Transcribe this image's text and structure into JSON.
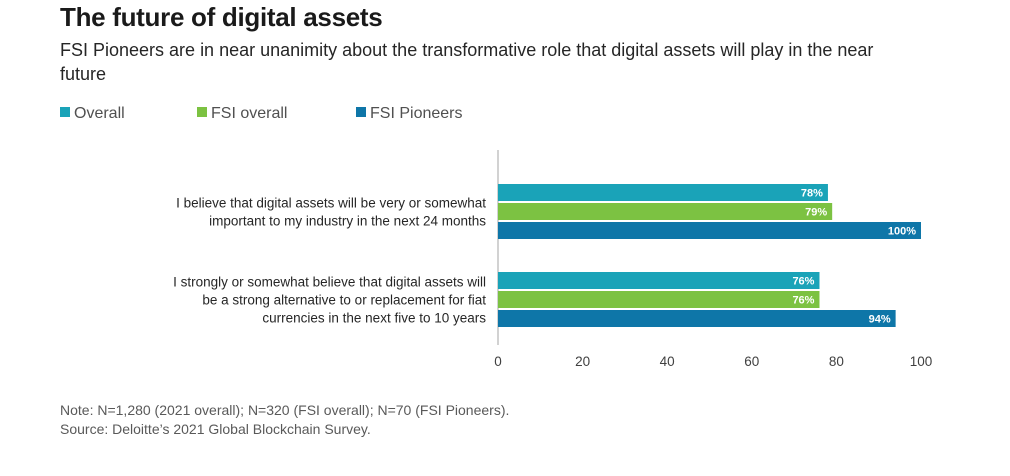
{
  "header": {
    "title": "The future of digital assets",
    "subtitle": "FSI Pioneers are in near unanimity about the transformative role that digital assets will play in the near future"
  },
  "footer": {
    "note": "Note:  N=1,280 (2021 overall); N=320 (FSI overall); N=70 (FSI Pioneers).",
    "source": "Source: Deloitte’s 2021 Global Blockchain Survey."
  },
  "chart_data": {
    "type": "bar",
    "orientation": "horizontal",
    "categories": [
      [
        "I believe that digital assets will be very or somewhat",
        "important to my industry in the next 24 months"
      ],
      [
        "I strongly or somewhat believe that digital assets will",
        "be a strong alternative to or replacement for fiat",
        "currencies in the next five to 10 years"
      ]
    ],
    "series": [
      {
        "name": "Overall",
        "color": "#1aa3b8",
        "values": [
          78,
          76
        ],
        "labels": [
          "78%",
          "76%"
        ]
      },
      {
        "name": "FSI overall",
        "color": "#7cc242",
        "values": [
          79,
          76
        ],
        "labels": [
          "79%",
          "76%"
        ]
      },
      {
        "name": "FSI Pioneers",
        "color": "#0e76a8",
        "values": [
          100,
          94
        ],
        "labels": [
          "100%",
          "94%"
        ]
      }
    ],
    "xlim": [
      0,
      100
    ],
    "xticks": [
      0,
      20,
      40,
      60,
      80,
      100
    ],
    "xtick_labels": [
      "0",
      "20",
      "40",
      "60",
      "80",
      "100"
    ],
    "legend_position": "top-left",
    "grid": false
  }
}
